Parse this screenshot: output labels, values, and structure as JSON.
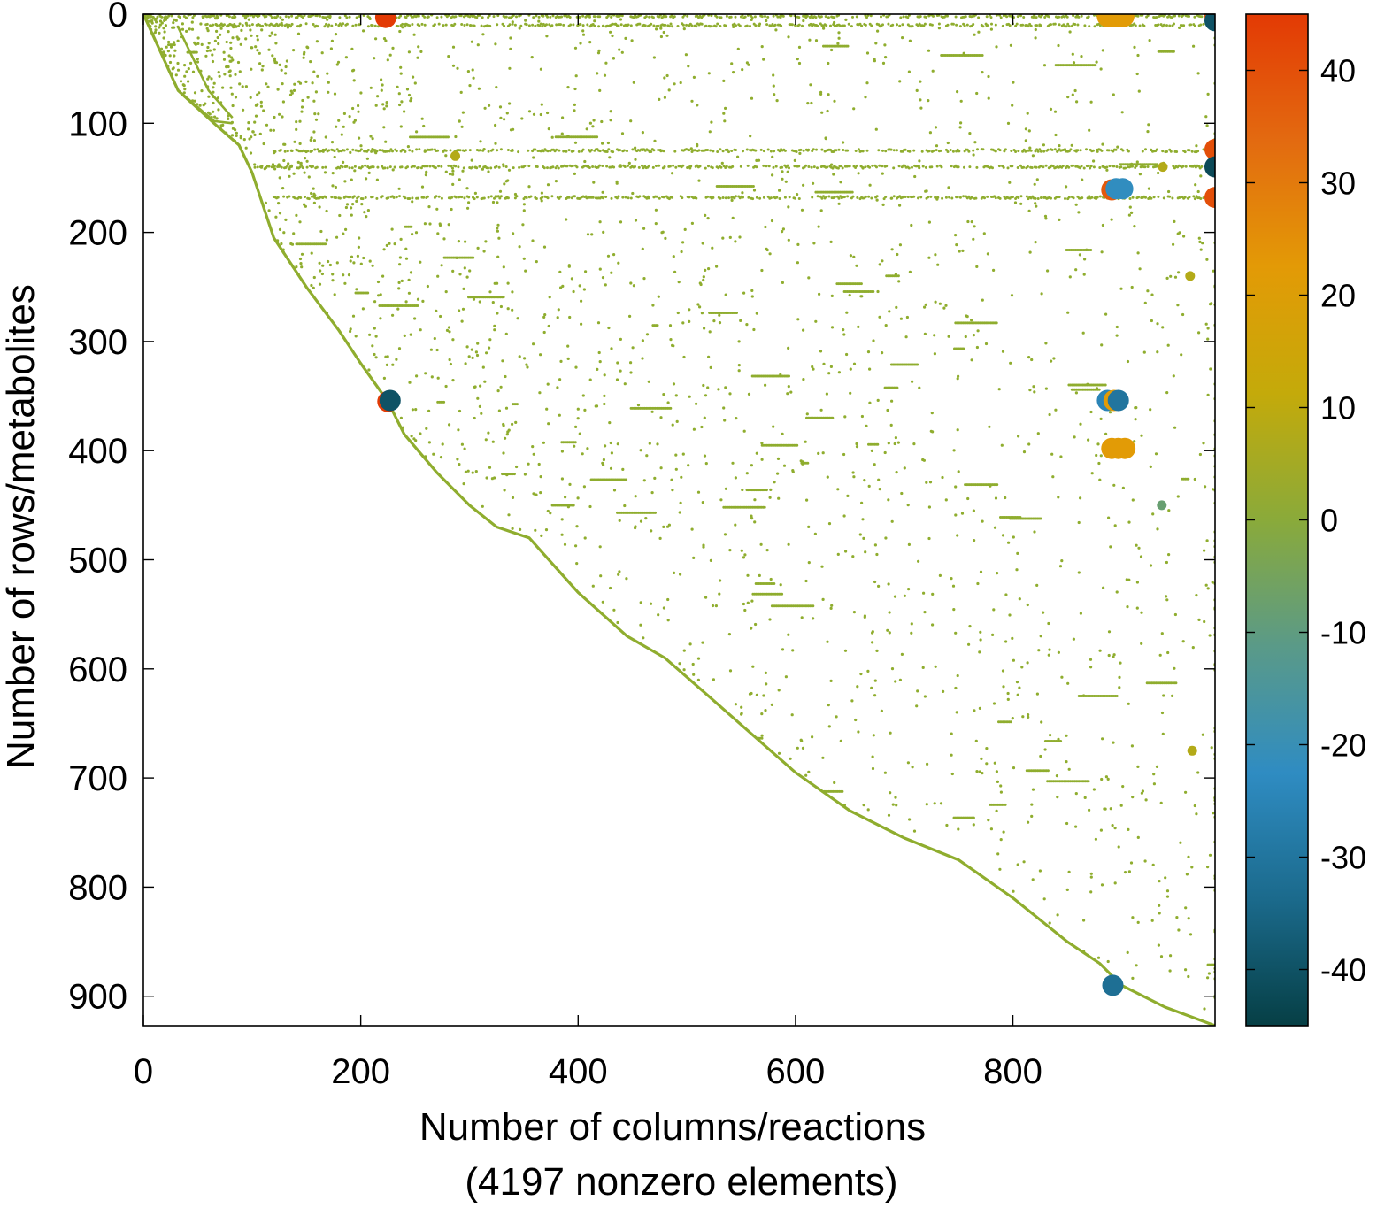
{
  "chart_data": {
    "type": "scatter",
    "subtype": "sparsity-pattern",
    "xlabel": "Number of columns/reactions",
    "xlabel_note": "(4197 nonzero elements)",
    "ylabel": "Number of rows/metabolites",
    "xlim": [
      0,
      986
    ],
    "ylim": [
      927,
      0
    ],
    "y_axis_inverted": true,
    "x_ticks": [
      "0",
      "200",
      "400",
      "600",
      "800"
    ],
    "y_ticks": [
      "0",
      "100",
      "200",
      "300",
      "400",
      "500",
      "600",
      "700",
      "800",
      "900"
    ],
    "colorbar": {
      "range": [
        -45,
        45
      ],
      "ticks": [
        "40",
        "30",
        "20",
        "10",
        "0",
        "-10",
        "-20",
        "-30",
        "-40"
      ],
      "colormap": [
        "#063f45",
        "#1b6a8c",
        "#2f8cc2",
        "#5a9a88",
        "#8aaa3a",
        "#c4aa0a",
        "#e39a06",
        "#e36a10",
        "#e33a04"
      ]
    },
    "dominant_color": "#8fad2e",
    "diagonal_segments": [
      {
        "x": [
          0,
          32,
          65,
          88,
          100,
          120,
          150,
          180,
          200,
          225,
          240,
          270,
          300,
          325,
          355,
          400,
          445,
          480,
          520,
          560,
          600,
          650,
          700,
          750,
          800,
          850,
          880,
          900,
          940,
          986
        ],
        "y": [
          0,
          70,
          100,
          120,
          145,
          205,
          250,
          290,
          320,
          355,
          385,
          420,
          450,
          470,
          480,
          530,
          570,
          590,
          625,
          660,
          695,
          730,
          755,
          775,
          810,
          850,
          870,
          890,
          910,
          927
        ]
      },
      {
        "x": [
          0,
          32,
          65,
          82
        ],
        "y": [
          0,
          70,
          98,
          100
        ]
      },
      {
        "x": [
          32,
          60,
          82
        ],
        "y": [
          12,
          70,
          95
        ]
      }
    ],
    "dense_row_bands": [
      {
        "y": 2,
        "x_start": 0,
        "x_end": 986
      },
      {
        "y": 10,
        "x_start": 55,
        "x_end": 986
      },
      {
        "y": 125,
        "x_start": 120,
        "x_end": 986
      },
      {
        "y": 140,
        "x_start": 100,
        "x_end": 986
      },
      {
        "y": 168,
        "x_start": 120,
        "x_end": 986
      }
    ],
    "large_points": [
      {
        "x": 223,
        "y": 3,
        "value": 45
      },
      {
        "x": 225,
        "y": 355,
        "value": 45
      },
      {
        "x": 227,
        "y": 354,
        "value": -40
      },
      {
        "x": 887,
        "y": 2,
        "value": 22
      },
      {
        "x": 892,
        "y": 2,
        "value": 22
      },
      {
        "x": 897,
        "y": 2,
        "value": 22
      },
      {
        "x": 902,
        "y": 2,
        "value": 22
      },
      {
        "x": 891,
        "y": 161,
        "value": 38
      },
      {
        "x": 895,
        "y": 160,
        "value": -22
      },
      {
        "x": 901,
        "y": 160,
        "value": -22
      },
      {
        "x": 887,
        "y": 354,
        "value": -25
      },
      {
        "x": 893,
        "y": 354,
        "value": 22
      },
      {
        "x": 897,
        "y": 354,
        "value": -30
      },
      {
        "x": 891,
        "y": 398,
        "value": 22
      },
      {
        "x": 897,
        "y": 398,
        "value": 22
      },
      {
        "x": 903,
        "y": 398,
        "value": 22
      },
      {
        "x": 937,
        "y": 450,
        "value": -8
      },
      {
        "x": 892,
        "y": 890,
        "value": -32
      },
      {
        "x": 986,
        "y": 2,
        "value": 40
      },
      {
        "x": 986,
        "y": 6,
        "value": -40
      },
      {
        "x": 986,
        "y": 124,
        "value": 40
      },
      {
        "x": 986,
        "y": 140,
        "value": -42
      },
      {
        "x": 986,
        "y": 168,
        "value": 40
      },
      {
        "x": 287,
        "y": 130,
        "value": 8
      },
      {
        "x": 938,
        "y": 140,
        "value": 8
      },
      {
        "x": 963,
        "y": 240,
        "value": 8
      },
      {
        "x": 965,
        "y": 675,
        "value": 8
      }
    ]
  }
}
